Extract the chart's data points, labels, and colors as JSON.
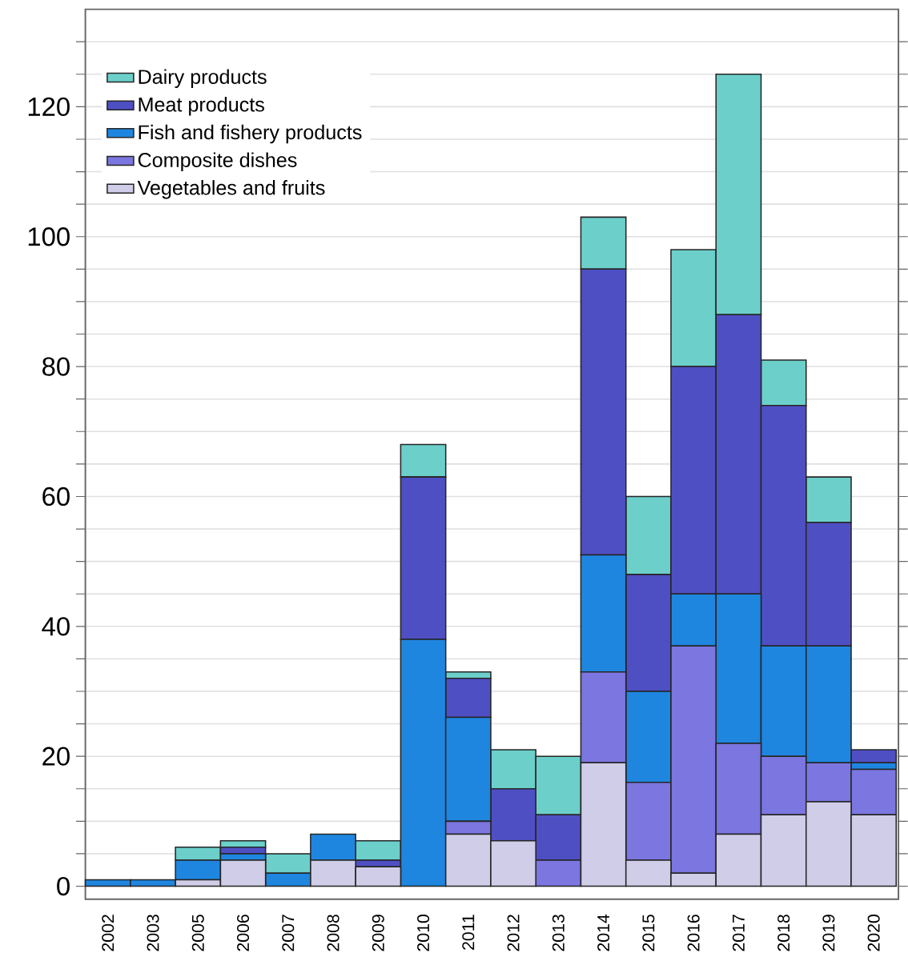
{
  "chart_data": {
    "type": "bar",
    "stacked": true,
    "categories": [
      "2002",
      "2003",
      "2005",
      "2006",
      "2007",
      "2008",
      "2009",
      "2010",
      "2011",
      "2012",
      "2013",
      "2014",
      "2015",
      "2016",
      "2017",
      "2018",
      "2019",
      "2020"
    ],
    "series": [
      {
        "name": "Vegetables and fruits",
        "color": "#cfcde8",
        "values": [
          0,
          0,
          1,
          4,
          0,
          4,
          3,
          0,
          8,
          7,
          0,
          19,
          4,
          2,
          8,
          11,
          13,
          11
        ]
      },
      {
        "name": "Composite dishes",
        "color": "#7b76e0",
        "values": [
          0,
          0,
          0,
          0,
          0,
          0,
          0,
          0,
          2,
          0,
          4,
          14,
          12,
          35,
          14,
          9,
          6,
          7
        ]
      },
      {
        "name": "Fish and fishery products",
        "color": "#1f86e0",
        "values": [
          1,
          1,
          3,
          1,
          2,
          4,
          0,
          38,
          16,
          0,
          0,
          18,
          14,
          8,
          23,
          17,
          18,
          1
        ]
      },
      {
        "name": "Meat products",
        "color": "#4f4fc4",
        "values": [
          0,
          0,
          0,
          1,
          0,
          0,
          1,
          25,
          6,
          8,
          7,
          44,
          18,
          35,
          43,
          37,
          19,
          2
        ]
      },
      {
        "name": "Dairy products",
        "color": "#6ccfca",
        "values": [
          0,
          0,
          2,
          1,
          3,
          0,
          3,
          5,
          1,
          6,
          9,
          8,
          12,
          18,
          37,
          7,
          7,
          0
        ]
      }
    ],
    "ylim": [
      -2,
      135
    ],
    "yticks": [
      0,
      {
        "value": 5,
        "label": null
      },
      {
        "value": 10,
        "label": null
      },
      {
        "value": 15,
        "label": null
      },
      20,
      {
        "value": 25,
        "label": null
      },
      {
        "value": 30,
        "label": null
      },
      {
        "value": 35,
        "label": null
      },
      40,
      {
        "value": 45,
        "label": null
      },
      {
        "value": 50,
        "label": null
      },
      {
        "value": 55,
        "label": null
      },
      60,
      {
        "value": 65,
        "label": null
      },
      {
        "value": 70,
        "label": null
      },
      {
        "value": 75,
        "label": null
      },
      80,
      {
        "value": 85,
        "label": null
      },
      {
        "value": 90,
        "label": null
      },
      {
        "value": 95,
        "label": null
      },
      100,
      {
        "value": 105,
        "label": null
      },
      {
        "value": 110,
        "label": null
      },
      {
        "value": 115,
        "label": null
      },
      120,
      {
        "value": 125,
        "label": null
      },
      {
        "value": 130,
        "label": null
      }
    ],
    "grid": "y",
    "legend": "top left"
  }
}
